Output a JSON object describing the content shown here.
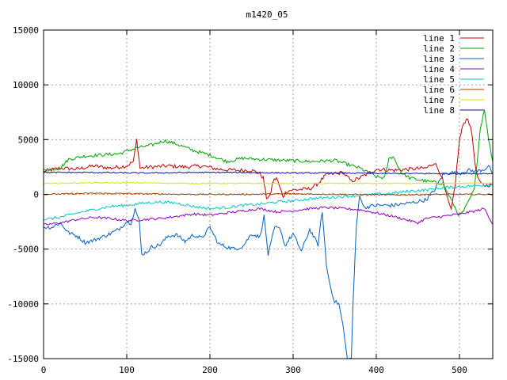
{
  "chart_data": {
    "type": "line",
    "title": "m1420_05",
    "xlabel": "",
    "ylabel": "",
    "xlim": [
      0,
      540
    ],
    "ylim": [
      -15000,
      15000
    ],
    "xticks": [
      0,
      100,
      200,
      300,
      400,
      500
    ],
    "yticks": [
      -15000,
      -10000,
      -5000,
      0,
      5000,
      10000,
      15000
    ],
    "grid": true,
    "legend_position": "top-right",
    "series": [
      {
        "name": "line 1",
        "color": "#c00000",
        "points": [
          [
            0,
            2100
          ],
          [
            20,
            2400
          ],
          [
            40,
            2300
          ],
          [
            60,
            2600
          ],
          [
            80,
            2400
          ],
          [
            100,
            2600
          ],
          [
            108,
            3000
          ],
          [
            112,
            5000
          ],
          [
            116,
            2400
          ],
          [
            130,
            2500
          ],
          [
            150,
            2600
          ],
          [
            170,
            2500
          ],
          [
            190,
            2600
          ],
          [
            210,
            2300
          ],
          [
            230,
            2200
          ],
          [
            250,
            2200
          ],
          [
            260,
            1900
          ],
          [
            264,
            1500
          ],
          [
            268,
            -300
          ],
          [
            272,
            -200
          ],
          [
            276,
            1200
          ],
          [
            280,
            1500
          ],
          [
            288,
            -200
          ],
          [
            292,
            300
          ],
          [
            300,
            400
          ],
          [
            320,
            500
          ],
          [
            330,
            1000
          ],
          [
            340,
            1800
          ],
          [
            360,
            2000
          ],
          [
            370,
            1200
          ],
          [
            380,
            1500
          ],
          [
            400,
            2300
          ],
          [
            420,
            2200
          ],
          [
            440,
            2300
          ],
          [
            460,
            2400
          ],
          [
            470,
            2900
          ],
          [
            478,
            1800
          ],
          [
            484,
            0
          ],
          [
            490,
            -1500
          ],
          [
            495,
            1000
          ],
          [
            500,
            5000
          ],
          [
            505,
            6500
          ],
          [
            510,
            7000
          ],
          [
            515,
            5500
          ],
          [
            520,
            2000
          ],
          [
            525,
            1000
          ],
          [
            530,
            800
          ],
          [
            540,
            900
          ]
        ]
      },
      {
        "name": "line 2",
        "color": "#00a000",
        "points": [
          [
            0,
            2200
          ],
          [
            20,
            2400
          ],
          [
            30,
            3200
          ],
          [
            50,
            3500
          ],
          [
            70,
            3600
          ],
          [
            90,
            3700
          ],
          [
            110,
            4200
          ],
          [
            130,
            4500
          ],
          [
            145,
            4900
          ],
          [
            160,
            4600
          ],
          [
            180,
            4000
          ],
          [
            200,
            3600
          ],
          [
            220,
            3000
          ],
          [
            240,
            3300
          ],
          [
            260,
            3200
          ],
          [
            290,
            3100
          ],
          [
            320,
            3000
          ],
          [
            350,
            3100
          ],
          [
            380,
            2400
          ],
          [
            390,
            2000
          ],
          [
            400,
            1600
          ],
          [
            410,
            1500
          ],
          [
            415,
            3200
          ],
          [
            420,
            3500
          ],
          [
            430,
            2000
          ],
          [
            440,
            1500
          ],
          [
            460,
            1200
          ],
          [
            480,
            1000
          ],
          [
            490,
            -500
          ],
          [
            500,
            -2000
          ],
          [
            505,
            -1500
          ],
          [
            510,
            -800
          ],
          [
            518,
            500
          ],
          [
            525,
            6000
          ],
          [
            530,
            7800
          ],
          [
            535,
            5000
          ],
          [
            540,
            3000
          ]
        ]
      },
      {
        "name": "line 3",
        "color": "#0060c0",
        "points": [
          [
            0,
            -3000
          ],
          [
            10,
            -3000
          ],
          [
            20,
            -2600
          ],
          [
            30,
            -3500
          ],
          [
            40,
            -3800
          ],
          [
            50,
            -4400
          ],
          [
            60,
            -4200
          ],
          [
            70,
            -3900
          ],
          [
            80,
            -3600
          ],
          [
            90,
            -3200
          ],
          [
            100,
            -2500
          ],
          [
            105,
            -2600
          ],
          [
            110,
            -1300
          ],
          [
            115,
            -2500
          ],
          [
            118,
            -5500
          ],
          [
            125,
            -5200
          ],
          [
            130,
            -4800
          ],
          [
            140,
            -4600
          ],
          [
            150,
            -3800
          ],
          [
            160,
            -3700
          ],
          [
            170,
            -4300
          ],
          [
            180,
            -3700
          ],
          [
            190,
            -4000
          ],
          [
            200,
            -3000
          ],
          [
            210,
            -4500
          ],
          [
            220,
            -4800
          ],
          [
            230,
            -5000
          ],
          [
            240,
            -4700
          ],
          [
            250,
            -3600
          ],
          [
            260,
            -3900
          ],
          [
            265,
            -2000
          ],
          [
            270,
            -5500
          ],
          [
            278,
            -3000
          ],
          [
            285,
            -3200
          ],
          [
            290,
            -4700
          ],
          [
            300,
            -3600
          ],
          [
            310,
            -5200
          ],
          [
            320,
            -3200
          ],
          [
            330,
            -4600
          ],
          [
            335,
            -1500
          ],
          [
            340,
            -6500
          ],
          [
            345,
            -8500
          ],
          [
            350,
            -9800
          ],
          [
            355,
            -10000
          ],
          [
            360,
            -12000
          ],
          [
            365,
            -15000
          ],
          [
            370,
            -15000
          ],
          [
            372,
            -10000
          ],
          [
            376,
            -3000
          ],
          [
            380,
            0
          ],
          [
            385,
            -1200
          ],
          [
            400,
            -1000
          ],
          [
            420,
            -1000
          ],
          [
            440,
            -800
          ],
          [
            460,
            -500
          ],
          [
            470,
            400
          ],
          [
            480,
            1800
          ],
          [
            490,
            2000
          ],
          [
            500,
            1900
          ],
          [
            510,
            2200
          ],
          [
            520,
            2100
          ],
          [
            530,
            2300
          ],
          [
            535,
            2600
          ],
          [
            540,
            1900
          ]
        ]
      },
      {
        "name": "line 4",
        "color": "#9000c0",
        "points": [
          [
            0,
            -2800
          ],
          [
            20,
            -2600
          ],
          [
            40,
            -2300
          ],
          [
            60,
            -2100
          ],
          [
            80,
            -2200
          ],
          [
            100,
            -2400
          ],
          [
            120,
            -2300
          ],
          [
            140,
            -2200
          ],
          [
            160,
            -2000
          ],
          [
            180,
            -1800
          ],
          [
            200,
            -1900
          ],
          [
            220,
            -1700
          ],
          [
            240,
            -1500
          ],
          [
            260,
            -1300
          ],
          [
            280,
            -1600
          ],
          [
            300,
            -1500
          ],
          [
            320,
            -1300
          ],
          [
            340,
            -1200
          ],
          [
            360,
            -1300
          ],
          [
            380,
            -1400
          ],
          [
            400,
            -1700
          ],
          [
            420,
            -2000
          ],
          [
            440,
            -2400
          ],
          [
            450,
            -2600
          ],
          [
            460,
            -2200
          ],
          [
            480,
            -2000
          ],
          [
            500,
            -1800
          ],
          [
            520,
            -1500
          ],
          [
            530,
            -1300
          ],
          [
            540,
            -2700
          ]
        ]
      },
      {
        "name": "line 5",
        "color": "#00c8c8",
        "points": [
          [
            0,
            -2300
          ],
          [
            20,
            -2100
          ],
          [
            40,
            -1700
          ],
          [
            60,
            -1400
          ],
          [
            80,
            -1100
          ],
          [
            100,
            -1000
          ],
          [
            120,
            -800
          ],
          [
            140,
            -700
          ],
          [
            160,
            -800
          ],
          [
            180,
            -1100
          ],
          [
            200,
            -1300
          ],
          [
            220,
            -1200
          ],
          [
            240,
            -1000
          ],
          [
            260,
            -900
          ],
          [
            280,
            -700
          ],
          [
            300,
            -600
          ],
          [
            320,
            -400
          ],
          [
            340,
            -300
          ],
          [
            360,
            -200
          ],
          [
            380,
            -100
          ],
          [
            400,
            0
          ],
          [
            420,
            100
          ],
          [
            440,
            300
          ],
          [
            460,
            400
          ],
          [
            480,
            600
          ],
          [
            500,
            700
          ],
          [
            520,
            800
          ],
          [
            540,
            900
          ]
        ]
      },
      {
        "name": "line 6",
        "color": "#a04000",
        "points": [
          [
            0,
            0
          ],
          [
            60,
            100
          ],
          [
            120,
            50
          ],
          [
            180,
            0
          ],
          [
            240,
            0
          ],
          [
            300,
            50
          ],
          [
            360,
            0
          ],
          [
            420,
            -50
          ],
          [
            480,
            0
          ],
          [
            540,
            0
          ]
        ]
      },
      {
        "name": "line 7",
        "color": "#e0e000",
        "points": [
          [
            0,
            1000
          ],
          [
            60,
            1050
          ],
          [
            120,
            1050
          ],
          [
            180,
            1000
          ],
          [
            240,
            1000
          ],
          [
            300,
            1000
          ],
          [
            360,
            1000
          ],
          [
            420,
            1000
          ],
          [
            480,
            1000
          ],
          [
            540,
            1050
          ]
        ]
      },
      {
        "name": "line 8",
        "color": "#1010a0",
        "points": [
          [
            0,
            2000
          ],
          [
            60,
            2000
          ],
          [
            120,
            1950
          ],
          [
            180,
            2000
          ],
          [
            240,
            2000
          ],
          [
            300,
            1950
          ],
          [
            360,
            1950
          ],
          [
            420,
            1900
          ],
          [
            480,
            1900
          ],
          [
            540,
            1900
          ]
        ]
      }
    ]
  }
}
